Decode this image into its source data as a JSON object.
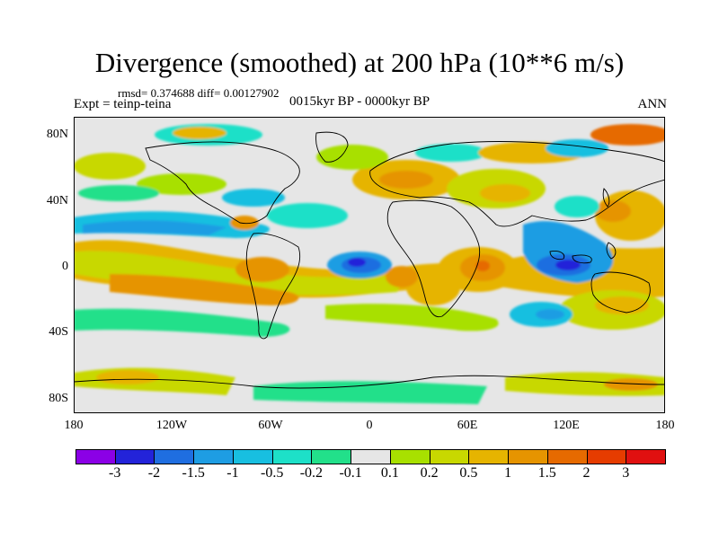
{
  "title": "Divergence (smoothed) at 200 hPa (10**6 m/s)",
  "stats": "rmsd= 0.374688 diff= 0.00127902",
  "experiment": "Expt = teinp-teina",
  "period": "0015kyr BP - 0000kyr BP",
  "season": "ANN",
  "lat_ticks": [
    "80N",
    "40N",
    "0",
    "40S",
    "80S"
  ],
  "lon_ticks": [
    "180",
    "120W",
    "60W",
    "0",
    "60E",
    "120E",
    "180"
  ],
  "colorbar": {
    "labels": [
      "-3",
      "-2",
      "-1.5",
      "-1",
      "-0.5",
      "-0.2",
      "-0.1",
      "0.1",
      "0.2",
      "0.5",
      "1",
      "1.5",
      "2",
      "3"
    ],
    "colors": [
      "#8b00e6",
      "#2323d9",
      "#1f6ee0",
      "#1e9de3",
      "#18bfe0",
      "#1de0c8",
      "#22e08a",
      "#e6e6e6",
      "#a8e000",
      "#c8d800",
      "#e6b400",
      "#e69400",
      "#e66a00",
      "#e63c00",
      "#e01010"
    ]
  },
  "colors": {
    "land_outline": "#000000",
    "neutral": "#e6e6e6"
  }
}
